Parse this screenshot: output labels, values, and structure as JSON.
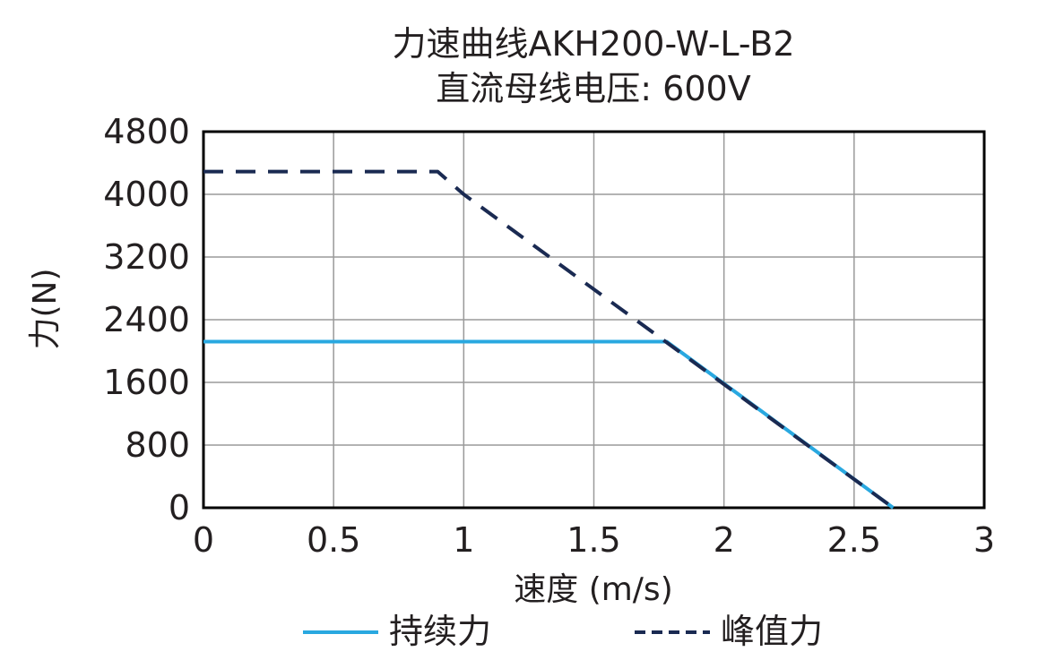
{
  "chart_data": {
    "type": "line",
    "title": "力速曲线AKH200-W-L-B2",
    "subtitle": "直流母线电压: 600V",
    "xlabel": "速度 (m/s)",
    "ylabel": "力(N)",
    "xlim": [
      0,
      3
    ],
    "ylim": [
      0,
      4800
    ],
    "xticks": [
      "0",
      "0.5",
      "1",
      "1.5",
      "2",
      "2.5",
      "3"
    ],
    "yticks": [
      "0",
      "800",
      "1600",
      "2400",
      "3200",
      "4000",
      "4800"
    ],
    "grid": true,
    "legend_position": "bottom",
    "series": [
      {
        "name": "持续力",
        "color": "#29a8e0",
        "style": "solid",
        "points": [
          [
            0,
            2120
          ],
          [
            1.78,
            2120
          ],
          [
            2.65,
            0
          ]
        ]
      },
      {
        "name": "峰值力",
        "color": "#1a2a52",
        "style": "dashed",
        "points": [
          [
            0,
            4290
          ],
          [
            0.9,
            4290
          ],
          [
            1.0,
            4000
          ],
          [
            2.65,
            0
          ]
        ]
      }
    ]
  }
}
